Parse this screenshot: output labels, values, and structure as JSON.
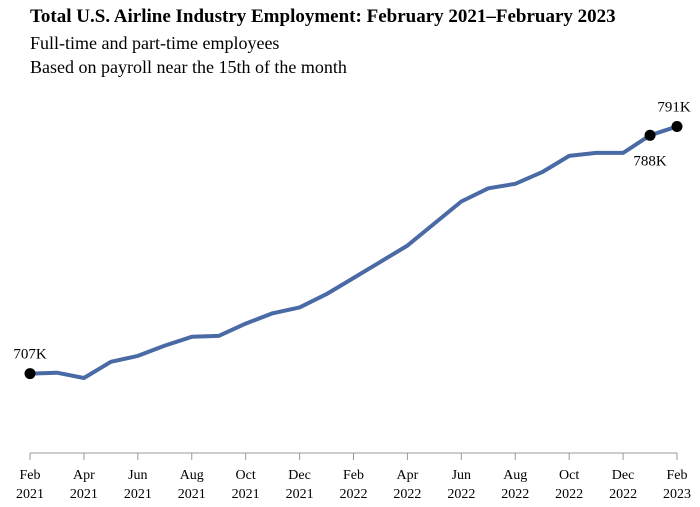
{
  "chart_data": {
    "type": "line",
    "title": "Total U.S. Airline Industry Employment: February 2021–February 2023",
    "subtitles": [
      "Full-time and part-time employees",
      "Based on payroll near the 15th of the month"
    ],
    "xlabel": "",
    "ylabel": "",
    "grid": false,
    "legend": "none",
    "line_color": "#4a6aa5",
    "x": [
      "Feb 2021",
      "Mar 2021",
      "Apr 2021",
      "May 2021",
      "Jun 2021",
      "Jul 2021",
      "Aug 2021",
      "Sep 2021",
      "Oct 2021",
      "Nov 2021",
      "Dec 2021",
      "Jan 2022",
      "Feb 2022",
      "Mar 2022",
      "Apr 2022",
      "May 2022",
      "Jun 2022",
      "Jul 2022",
      "Aug 2022",
      "Sep 2022",
      "Oct 2022",
      "Nov 2022",
      "Dec 2022",
      "Jan 2023",
      "Feb 2023"
    ],
    "values": [
      707,
      707.3,
      705.5,
      711,
      713,
      716.5,
      719.5,
      719.8,
      724,
      727.5,
      729.5,
      734,
      739.5,
      745,
      750.5,
      758,
      765.5,
      770,
      771.5,
      775.5,
      781,
      782,
      782,
      788,
      791
    ],
    "ylim": [
      680,
      800
    ],
    "x_ticks": [
      {
        "month": "Feb",
        "year": "2021",
        "index": 0
      },
      {
        "month": "Apr",
        "year": "2021",
        "index": 2
      },
      {
        "month": "Jun",
        "year": "2021",
        "index": 4
      },
      {
        "month": "Aug",
        "year": "2021",
        "index": 6
      },
      {
        "month": "Oct",
        "year": "2021",
        "index": 8
      },
      {
        "month": "Dec",
        "year": "2021",
        "index": 10
      },
      {
        "month": "Feb",
        "year": "2022",
        "index": 12
      },
      {
        "month": "Apr",
        "year": "2022",
        "index": 14
      },
      {
        "month": "Jun",
        "year": "2022",
        "index": 16
      },
      {
        "month": "Aug",
        "year": "2022",
        "index": 18
      },
      {
        "month": "Oct",
        "year": "2022",
        "index": 20
      },
      {
        "month": "Dec",
        "year": "2022",
        "index": 22
      },
      {
        "month": "Feb",
        "year": "2023",
        "index": 24
      }
    ],
    "annotations": [
      {
        "index": 0,
        "label": "707K",
        "position": "above"
      },
      {
        "index": 23,
        "label": "788K",
        "position": "below"
      },
      {
        "index": 24,
        "label": "791K",
        "position": "above"
      }
    ]
  }
}
